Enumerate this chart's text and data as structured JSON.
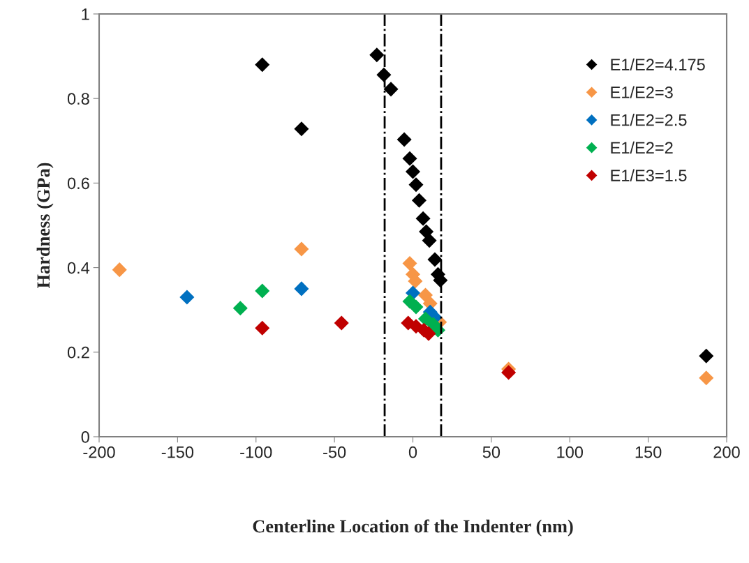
{
  "chart_data": {
    "type": "scatter",
    "xlabel": "Centerline Location of the Indenter (nm)",
    "ylabel": "Hardness (GPa)",
    "xlim": [
      -200,
      200
    ],
    "xticks": [
      -200,
      -150,
      -100,
      -50,
      0,
      50,
      100,
      150,
      200
    ],
    "ylim": [
      0,
      1
    ],
    "yticks": [
      0,
      0.2,
      0.4,
      0.6,
      0.8,
      1
    ],
    "grid": false,
    "legend": "top right",
    "marker": "diamond",
    "ref_lines": [
      {
        "axis": "x",
        "value": -18,
        "color": "#000000",
        "line_style": "dashdot"
      },
      {
        "axis": "x",
        "value": 18,
        "color": "#000000",
        "line_style": "dashdot"
      }
    ],
    "series": [
      {
        "name": "E1/E2=4.175",
        "color": "#000000",
        "x": [
          -96,
          -71,
          -23,
          -18.5,
          -14,
          -5.5,
          -2,
          0,
          2,
          4,
          6.5,
          8.5,
          10.5,
          14,
          16,
          17.5,
          187
        ],
        "values": [
          0.88,
          0.728,
          0.903,
          0.856,
          0.822,
          0.703,
          0.658,
          0.627,
          0.596,
          0.559,
          0.516,
          0.485,
          0.464,
          0.419,
          0.384,
          0.37,
          0.191
        ]
      },
      {
        "name": "E1/E2=3",
        "color": "#f79646",
        "x": [
          -187,
          -71,
          -2,
          0,
          1.5,
          8,
          11,
          17,
          61,
          187
        ],
        "values": [
          0.395,
          0.444,
          0.41,
          0.384,
          0.368,
          0.335,
          0.315,
          0.271,
          0.16,
          0.139
        ]
      },
      {
        "name": "E1/E2=2.5",
        "color": "#0070c0",
        "x": [
          -144,
          -71,
          0,
          11,
          14
        ],
        "values": [
          0.33,
          0.35,
          0.34,
          0.295,
          0.282
        ]
      },
      {
        "name": "E1/E2=2",
        "color": "#00b050",
        "x": [
          -110,
          -96,
          -2,
          2,
          8,
          13,
          16
        ],
        "values": [
          0.304,
          0.345,
          0.32,
          0.307,
          0.279,
          0.266,
          0.252
        ]
      },
      {
        "name": "E1/E3=1.5",
        "color": "#c00000",
        "x": [
          -96,
          -45.5,
          -3,
          2,
          7,
          10,
          61
        ],
        "values": [
          0.257,
          0.269,
          0.269,
          0.261,
          0.252,
          0.244,
          0.152
        ]
      }
    ]
  }
}
